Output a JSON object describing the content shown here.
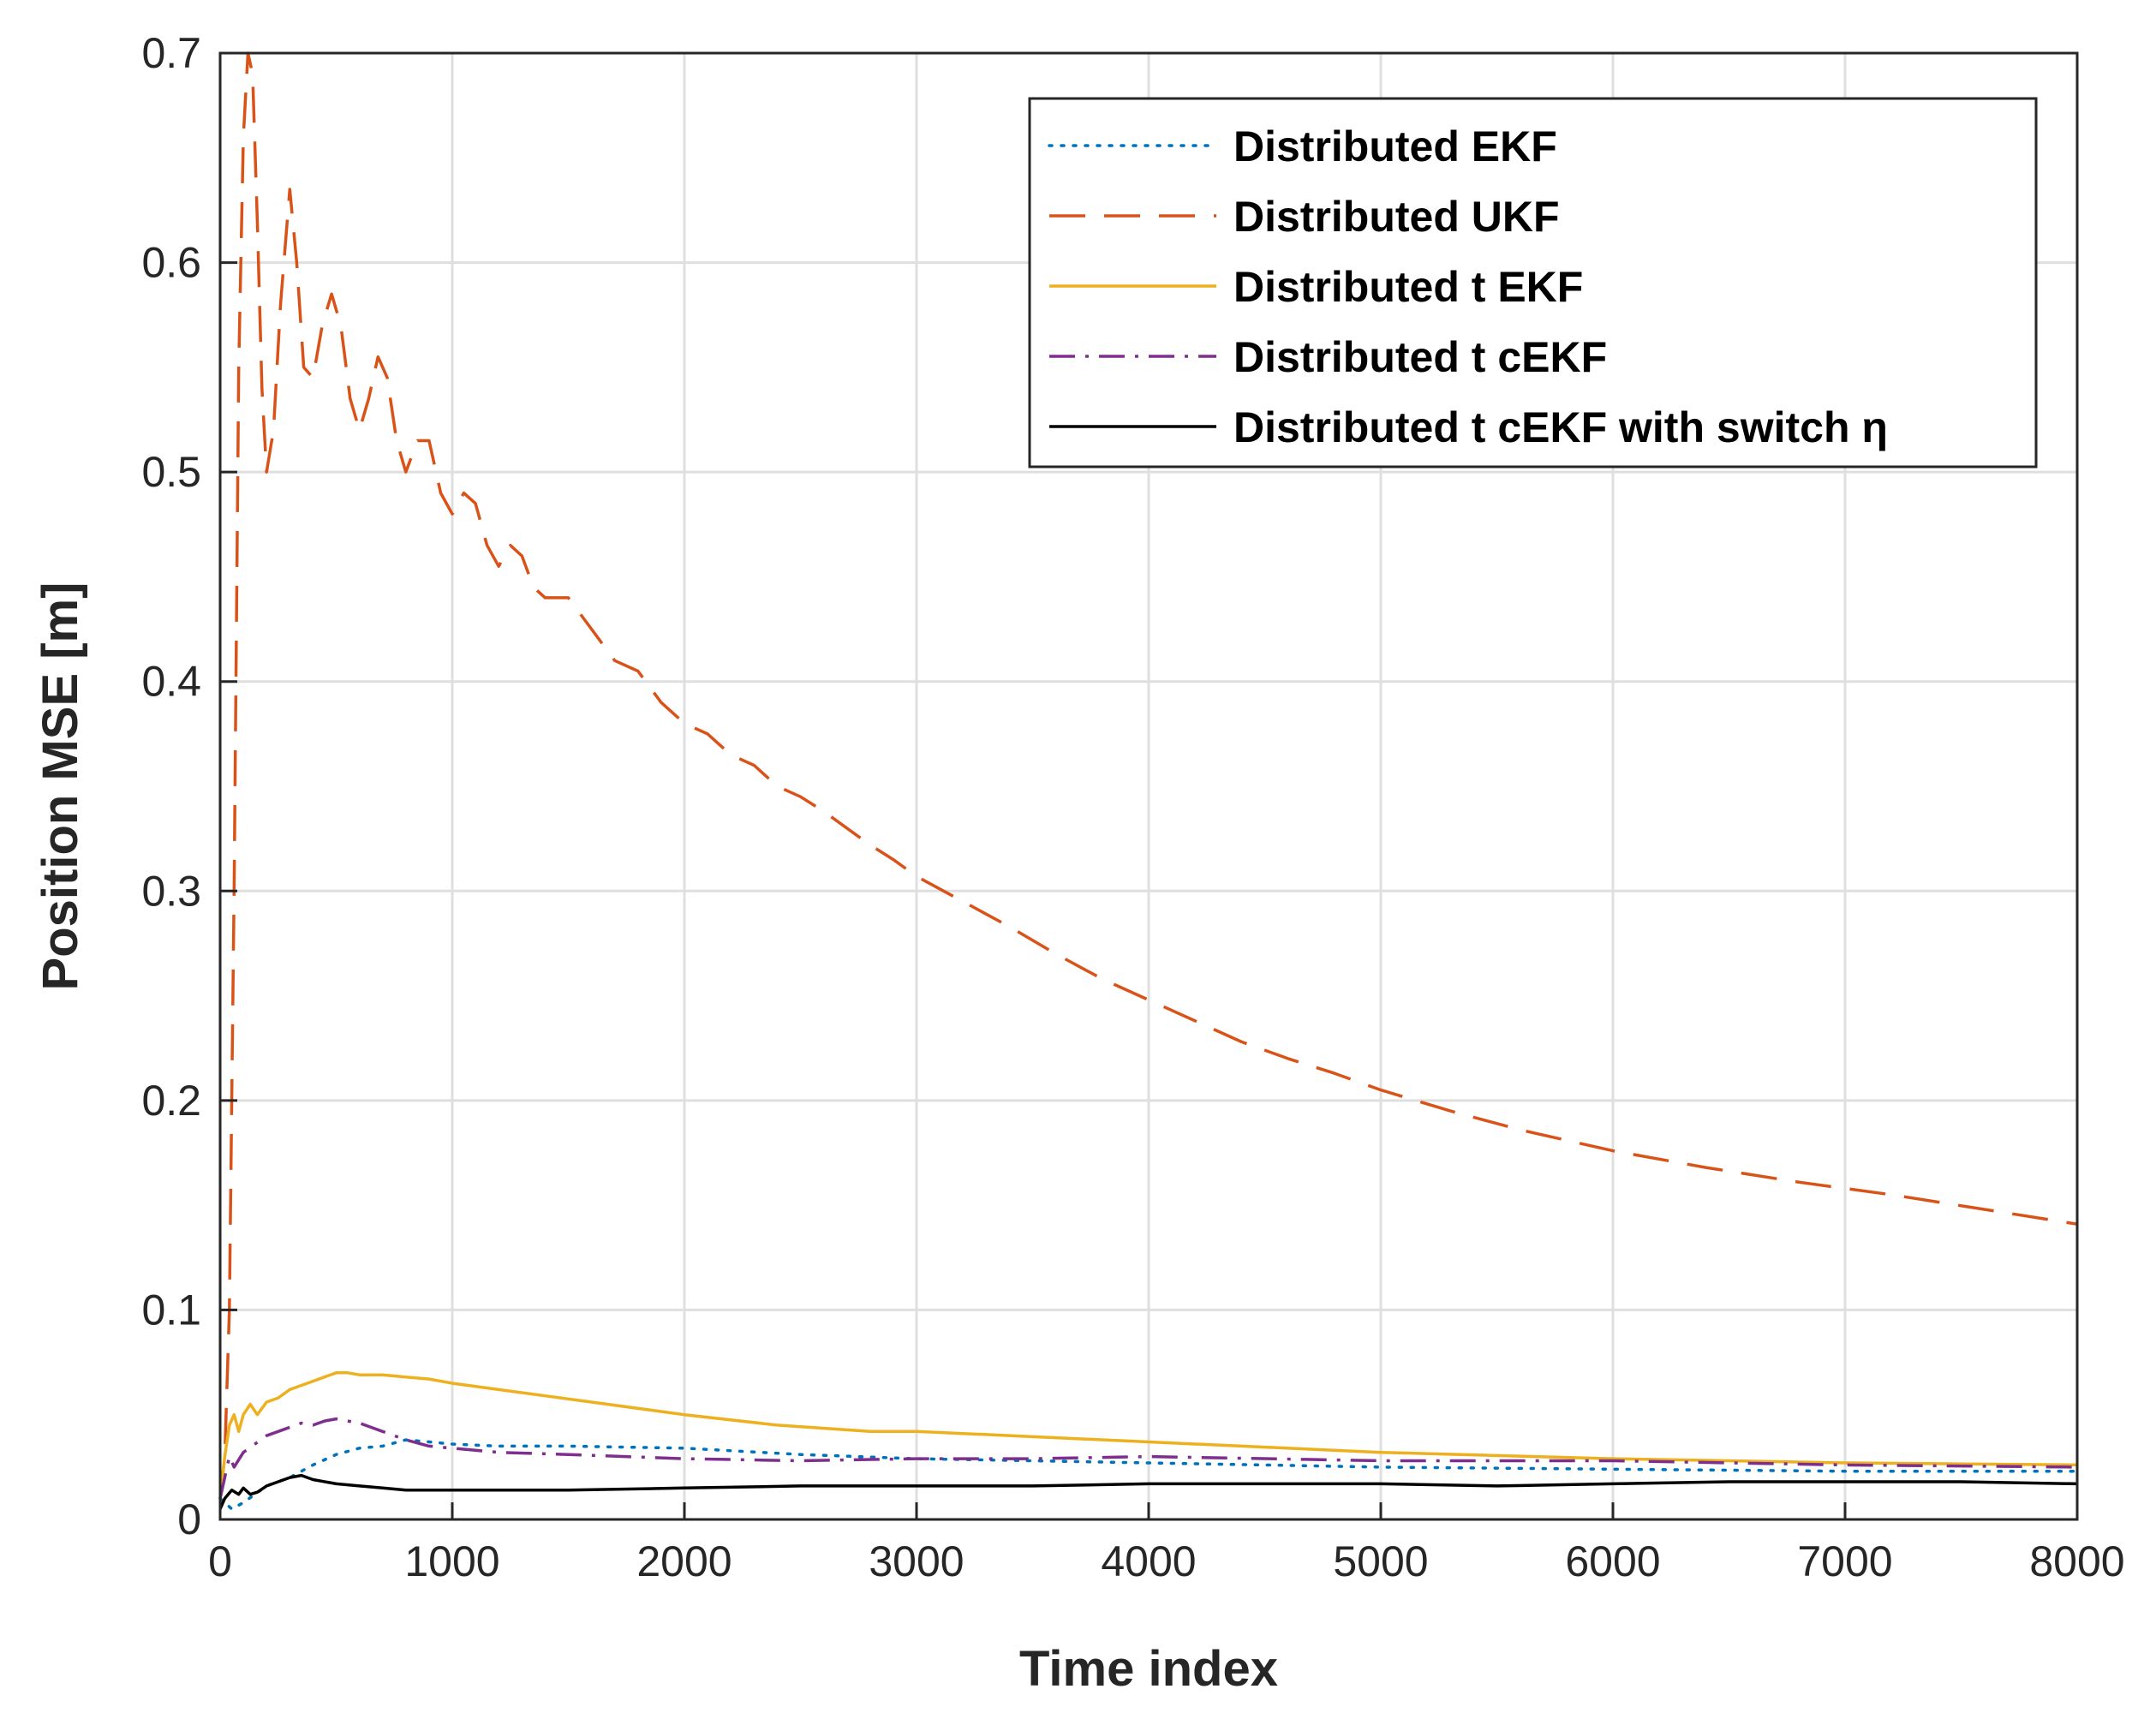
{
  "chart_data": {
    "type": "line",
    "title": "",
    "xlabel": "Time index",
    "ylabel": "Position MSE [m]",
    "xlim": [
      0,
      8000
    ],
    "ylim": [
      0,
      0.7
    ],
    "xticks": [
      0,
      1000,
      2000,
      3000,
      4000,
      5000,
      6000,
      7000,
      8000
    ],
    "yticks": [
      0,
      0.1,
      0.2,
      0.3,
      0.4,
      0.5,
      0.6,
      0.7
    ],
    "xtick_labels": [
      "0",
      "1000",
      "2000",
      "3000",
      "4000",
      "5000",
      "6000",
      "7000",
      "8000"
    ],
    "ytick_labels": [
      "0",
      "0.1",
      "0.2",
      "0.3",
      "0.4",
      "0.5",
      "0.6",
      "0.7"
    ],
    "grid": true,
    "legend_position": "top-right",
    "series": [
      {
        "name": "Distributed EKF",
        "color": "#0072BD",
        "dash": "dotted",
        "x": [
          0,
          50,
          100,
          150,
          200,
          300,
          400,
          500,
          600,
          700,
          800,
          900,
          1000,
          1200,
          1500,
          2000,
          2500,
          3000,
          3500,
          4000,
          5000,
          6000,
          7000,
          8000
        ],
        "y": [
          0.01,
          0.005,
          0.008,
          0.012,
          0.016,
          0.02,
          0.026,
          0.031,
          0.034,
          0.035,
          0.038,
          0.037,
          0.036,
          0.035,
          0.035,
          0.034,
          0.031,
          0.029,
          0.028,
          0.027,
          0.025,
          0.024,
          0.023,
          0.023
        ]
      },
      {
        "name": "Distributed UKF",
        "color": "#D95319",
        "dash": "dashed",
        "x": [
          0,
          20,
          40,
          60,
          80,
          100,
          120,
          140,
          160,
          180,
          200,
          230,
          260,
          300,
          330,
          360,
          400,
          440,
          480,
          520,
          560,
          600,
          640,
          680,
          720,
          760,
          800,
          850,
          900,
          950,
          1000,
          1050,
          1100,
          1150,
          1200,
          1250,
          1300,
          1350,
          1400,
          1500,
          1600,
          1700,
          1800,
          1900,
          2000,
          2100,
          2200,
          2300,
          2400,
          2500,
          2600,
          2700,
          2800,
          2900,
          3000,
          3200,
          3400,
          3600,
          3800,
          4000,
          4200,
          4400,
          4600,
          4800,
          5000,
          5300,
          5600,
          6000,
          6400,
          6800,
          7200,
          7600,
          8000
        ],
        "y": [
          0.01,
          0.03,
          0.1,
          0.3,
          0.55,
          0.66,
          0.7,
          0.69,
          0.62,
          0.54,
          0.5,
          0.52,
          0.58,
          0.635,
          0.6,
          0.55,
          0.545,
          0.57,
          0.585,
          0.57,
          0.535,
          0.52,
          0.535,
          0.555,
          0.545,
          0.515,
          0.5,
          0.515,
          0.515,
          0.49,
          0.48,
          0.49,
          0.485,
          0.465,
          0.455,
          0.465,
          0.46,
          0.445,
          0.44,
          0.44,
          0.425,
          0.41,
          0.405,
          0.39,
          0.38,
          0.375,
          0.365,
          0.36,
          0.35,
          0.345,
          0.338,
          0.33,
          0.322,
          0.315,
          0.307,
          0.295,
          0.283,
          0.27,
          0.258,
          0.248,
          0.238,
          0.228,
          0.22,
          0.213,
          0.205,
          0.195,
          0.186,
          0.176,
          0.168,
          0.161,
          0.155,
          0.148,
          0.141
        ]
      },
      {
        "name": "Distributed t EKF",
        "color": "#EDB120",
        "dash": "solid",
        "x": [
          0,
          20,
          40,
          60,
          80,
          100,
          130,
          160,
          200,
          250,
          300,
          350,
          400,
          450,
          500,
          550,
          600,
          700,
          800,
          900,
          1000,
          1200,
          1400,
          1600,
          2000,
          2400,
          2800,
          3000,
          3200,
          3600,
          4000,
          4400,
          5000,
          6000,
          7000,
          8000
        ],
        "y": [
          0.01,
          0.03,
          0.045,
          0.05,
          0.042,
          0.05,
          0.055,
          0.05,
          0.056,
          0.058,
          0.062,
          0.064,
          0.066,
          0.068,
          0.07,
          0.07,
          0.069,
          0.069,
          0.068,
          0.067,
          0.065,
          0.062,
          0.059,
          0.056,
          0.05,
          0.045,
          0.042,
          0.042,
          0.041,
          0.039,
          0.037,
          0.035,
          0.032,
          0.029,
          0.027,
          0.026
        ]
      },
      {
        "name": "Distributed t cEKF",
        "color": "#7E2F8E",
        "dash": "dashdot",
        "x": [
          0,
          20,
          40,
          60,
          100,
          150,
          200,
          250,
          300,
          350,
          400,
          450,
          500,
          550,
          600,
          650,
          700,
          800,
          900,
          1000,
          1200,
          1500,
          2000,
          2500,
          3000,
          3500,
          4000,
          5000,
          6000,
          7000,
          8000
        ],
        "y": [
          0.01,
          0.02,
          0.03,
          0.025,
          0.032,
          0.036,
          0.04,
          0.042,
          0.044,
          0.046,
          0.045,
          0.047,
          0.048,
          0.047,
          0.046,
          0.044,
          0.042,
          0.038,
          0.035,
          0.034,
          0.032,
          0.031,
          0.029,
          0.028,
          0.029,
          0.029,
          0.03,
          0.028,
          0.028,
          0.026,
          0.025
        ]
      },
      {
        "name": "Distributed t cEKF with switch η",
        "color": "#000000",
        "dash": "solid",
        "x": [
          0,
          20,
          50,
          80,
          100,
          130,
          160,
          200,
          250,
          300,
          350,
          400,
          500,
          600,
          700,
          800,
          1000,
          1200,
          1500,
          2000,
          2500,
          3000,
          3500,
          4000,
          4500,
          5000,
          5500,
          6000,
          6500,
          7000,
          7500,
          8000
        ],
        "y": [
          0.005,
          0.01,
          0.014,
          0.012,
          0.015,
          0.012,
          0.013,
          0.016,
          0.018,
          0.02,
          0.021,
          0.019,
          0.017,
          0.016,
          0.015,
          0.014,
          0.014,
          0.014,
          0.014,
          0.015,
          0.016,
          0.016,
          0.016,
          0.017,
          0.017,
          0.017,
          0.016,
          0.017,
          0.018,
          0.018,
          0.018,
          0.017
        ]
      }
    ]
  }
}
